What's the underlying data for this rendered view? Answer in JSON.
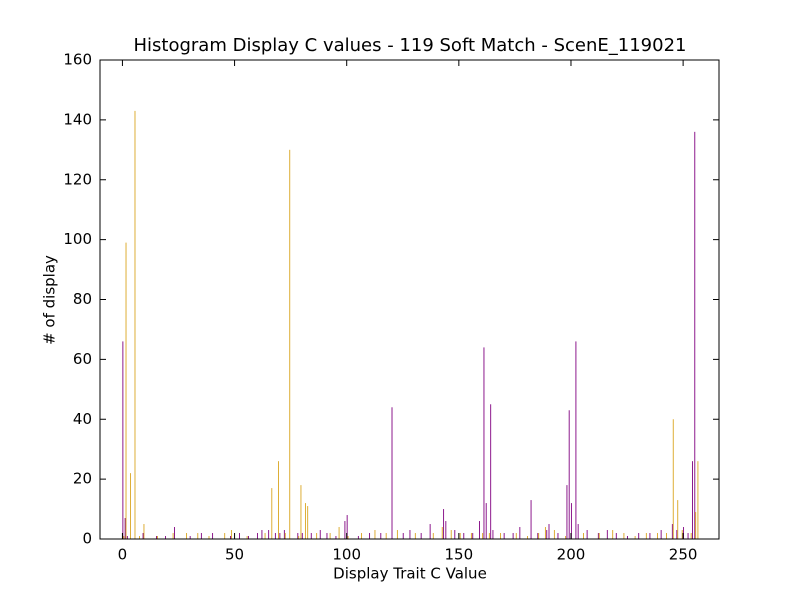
{
  "chart_data": {
    "type": "histogram",
    "title": "Histogram Display C values - 119 Soft Match - ScenE_119021",
    "x_label": "Display Trait C Value",
    "y_label": "# of display",
    "xlim": [
      -10,
      266
    ],
    "ylim": [
      0,
      160
    ],
    "xticks": [
      0,
      50,
      100,
      150,
      200,
      250
    ],
    "yticks": [
      0,
      20,
      40,
      60,
      80,
      100,
      120,
      140,
      160
    ],
    "series": [
      {
        "color": "#800080",
        "x": [
          0,
          1,
          2,
          9,
          15,
          19,
          23,
          30,
          35,
          40,
          48,
          52,
          56,
          60,
          62,
          65,
          68,
          70,
          72,
          78,
          80,
          84,
          88,
          91,
          95,
          99,
          100,
          105,
          110,
          115,
          120,
          125,
          128,
          133,
          137,
          143,
          144,
          148,
          152,
          156,
          159,
          161,
          162,
          164,
          165,
          170,
          174,
          177,
          182,
          185,
          189,
          190,
          194,
          198,
          199,
          200,
          202,
          203,
          207,
          212,
          216,
          220,
          225,
          230,
          235,
          240,
          245,
          247,
          250,
          252,
          254,
          255
        ],
        "values": [
          66,
          7,
          1,
          2,
          1,
          1,
          4,
          1,
          2,
          2,
          1,
          2,
          1,
          2,
          3,
          3,
          2,
          2,
          3,
          2,
          2,
          2,
          3,
          2,
          1,
          6,
          8,
          1,
          2,
          2,
          44,
          2,
          3,
          2,
          5,
          10,
          6,
          3,
          2,
          2,
          6,
          64,
          12,
          45,
          3,
          2,
          2,
          4,
          13,
          2,
          3,
          5,
          2,
          18,
          43,
          12,
          66,
          5,
          3,
          2,
          3,
          2,
          1,
          2,
          2,
          3,
          5,
          3,
          4,
          2,
          26,
          136
        ]
      },
      {
        "color": "#daa520",
        "x": [
          0,
          1,
          3,
          5,
          7,
          9,
          15,
          22,
          28,
          33,
          38,
          45,
          48,
          55,
          63,
          66,
          69,
          72,
          74,
          78,
          79,
          81,
          82,
          86,
          92,
          96,
          100,
          106,
          112,
          117,
          122,
          130,
          138,
          142,
          146,
          150,
          155,
          160,
          163,
          168,
          175,
          180,
          185,
          188,
          192,
          197,
          205,
          212,
          218,
          223,
          228,
          233,
          238,
          242,
          245,
          247,
          249,
          253,
          255,
          256
        ],
        "values": [
          1,
          99,
          22,
          143,
          1,
          5,
          1,
          2,
          2,
          2,
          1,
          2,
          3,
          1,
          2,
          17,
          26,
          2,
          130,
          1,
          18,
          12,
          11,
          2,
          2,
          4,
          1,
          2,
          3,
          2,
          3,
          2,
          2,
          4,
          3,
          2,
          2,
          2,
          2,
          2,
          2,
          1,
          2,
          4,
          3,
          1,
          2,
          2,
          3,
          2,
          1,
          2,
          2,
          2,
          40,
          13,
          3,
          2,
          9,
          26
        ]
      }
    ]
  }
}
